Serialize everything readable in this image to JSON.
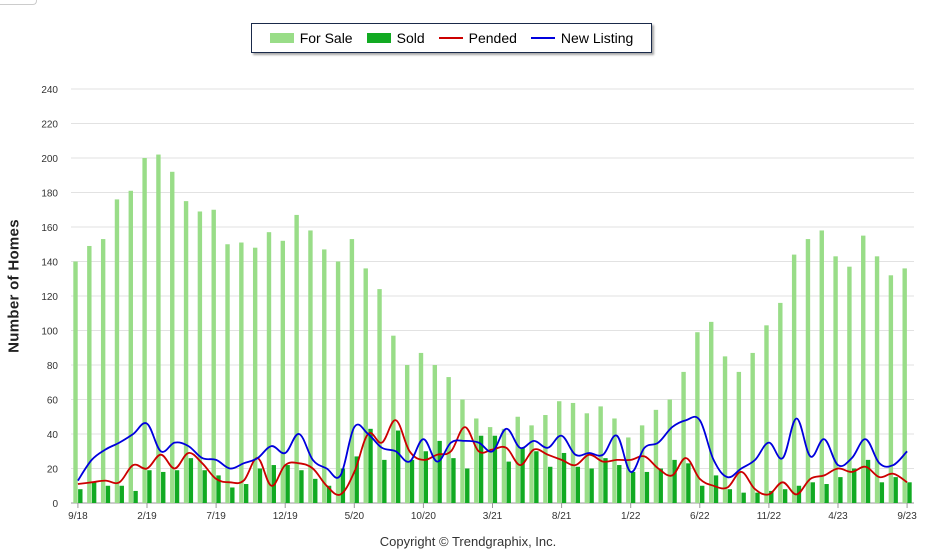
{
  "chart_data": {
    "type": "bar",
    "title": "",
    "xlabel": "",
    "ylabel": "Number of Homes",
    "ylim": [
      0,
      240
    ],
    "yticks": [
      0,
      20,
      40,
      60,
      80,
      100,
      120,
      140,
      160,
      180,
      200,
      220,
      240
    ],
    "grid": true,
    "legend_position": "top-center",
    "months": [
      "9/18",
      "10/18",
      "11/18",
      "12/18",
      "1/19",
      "2/19",
      "3/19",
      "4/19",
      "5/19",
      "6/19",
      "7/19",
      "8/19",
      "9/19",
      "10/19",
      "11/19",
      "12/19",
      "1/20",
      "2/20",
      "3/20",
      "4/20",
      "5/20",
      "6/20",
      "7/20",
      "8/20",
      "9/20",
      "10/20",
      "11/20",
      "12/20",
      "1/21",
      "2/21",
      "3/21",
      "4/21",
      "5/21",
      "6/21",
      "7/21",
      "8/21",
      "9/21",
      "10/21",
      "11/21",
      "12/21",
      "1/22",
      "2/22",
      "3/22",
      "4/22",
      "5/22",
      "6/22",
      "7/22",
      "8/22",
      "9/22",
      "10/22",
      "11/22",
      "12/22",
      "1/23",
      "2/23",
      "3/23",
      "4/23",
      "5/23",
      "6/23",
      "7/23",
      "8/23",
      "9/23"
    ],
    "tick_labels": [
      {
        "index": 0,
        "label": "9/18"
      },
      {
        "index": 5,
        "label": "2/19"
      },
      {
        "index": 10,
        "label": "7/19"
      },
      {
        "index": 15,
        "label": "12/19"
      },
      {
        "index": 20,
        "label": "5/20"
      },
      {
        "index": 25,
        "label": "10/20"
      },
      {
        "index": 30,
        "label": "3/21"
      },
      {
        "index": 35,
        "label": "8/21"
      },
      {
        "index": 40,
        "label": "1/22"
      },
      {
        "index": 45,
        "label": "6/22"
      },
      {
        "index": 50,
        "label": "11/22"
      },
      {
        "index": 55,
        "label": "4/23"
      },
      {
        "index": 60,
        "label": "9/23"
      }
    ],
    "series": [
      {
        "name": "For Sale",
        "kind": "bar",
        "color": "#99dd88",
        "values": [
          140,
          149,
          153,
          176,
          181,
          200,
          202,
          192,
          175,
          169,
          170,
          150,
          151,
          148,
          157,
          152,
          167,
          158,
          147,
          140,
          153,
          136,
          124,
          97,
          80,
          87,
          80,
          73,
          60,
          49,
          44,
          43,
          50,
          45,
          51,
          59,
          58,
          52,
          56,
          49,
          38,
          45,
          54,
          60,
          76,
          99,
          105,
          85,
          76,
          87,
          103,
          116,
          144,
          153,
          158,
          143,
          137,
          155,
          143,
          132,
          136
        ]
      },
      {
        "name": "Sold",
        "kind": "bar",
        "color": "#11aa22",
        "values": [
          8,
          12,
          10,
          10,
          7,
          19,
          18,
          19,
          26,
          19,
          16,
          9,
          11,
          20,
          22,
          22,
          19,
          14,
          10,
          20,
          27,
          43,
          25,
          42,
          25,
          30,
          36,
          26,
          20,
          39,
          39,
          24,
          32,
          30,
          21,
          29,
          21,
          20,
          26,
          22,
          18,
          18,
          20,
          25,
          23,
          10,
          16,
          8,
          6,
          6,
          7,
          8,
          10,
          12,
          11,
          15,
          20,
          25,
          12,
          15,
          12
        ]
      },
      {
        "name": "Pended",
        "kind": "line",
        "color": "#cc0000",
        "values": [
          11,
          12,
          13,
          12,
          22,
          20,
          28,
          20,
          29,
          23,
          14,
          12,
          13,
          26,
          10,
          22,
          23,
          20,
          10,
          5,
          18,
          40,
          35,
          48,
          30,
          25,
          28,
          30,
          44,
          30,
          31,
          32,
          22,
          31,
          28,
          25,
          22,
          28,
          24,
          25,
          25,
          27,
          20,
          16,
          26,
          14,
          10,
          9,
          18,
          8,
          5,
          12,
          5,
          14,
          16,
          20,
          18,
          21,
          15,
          17,
          12
        ]
      },
      {
        "name": "New Listing",
        "kind": "line",
        "color": "#0000dd",
        "values": [
          13,
          25,
          31,
          35,
          40,
          46,
          30,
          35,
          33,
          26,
          25,
          20,
          23,
          26,
          33,
          29,
          40,
          25,
          20,
          16,
          44,
          40,
          32,
          30,
          24,
          37,
          24,
          35,
          36,
          35,
          30,
          43,
          32,
          36,
          32,
          39,
          28,
          29,
          28,
          39,
          18,
          32,
          35,
          44,
          48,
          48,
          25,
          15,
          20,
          25,
          35,
          26,
          49,
          27,
          37,
          22,
          26,
          37,
          23,
          22,
          30
        ]
      }
    ]
  },
  "legend": [
    {
      "label": "For Sale",
      "color": "#99dd88",
      "kind": "bar"
    },
    {
      "label": "Sold",
      "color": "#11aa22",
      "kind": "bar"
    },
    {
      "label": "Pended",
      "color": "#cc0000",
      "kind": "line"
    },
    {
      "label": "New Listing",
      "color": "#0000dd",
      "kind": "line"
    }
  ],
  "copyright": "Copyright © Trendgraphix, Inc."
}
